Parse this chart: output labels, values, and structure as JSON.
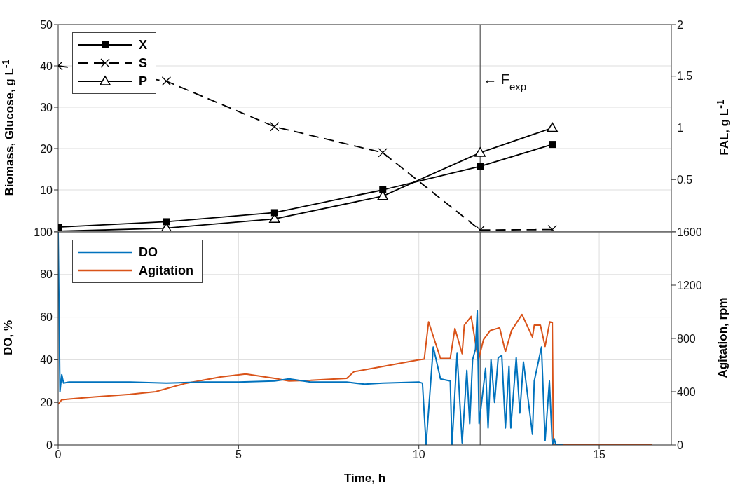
{
  "chart_data": [
    {
      "type": "line",
      "xlim": [
        0,
        17
      ],
      "xticks": [
        0,
        5,
        10,
        15
      ],
      "tick_labels": "y",
      "ylim": [
        0,
        50
      ],
      "yticks": [
        {
          "value": 0,
          "label": null
        },
        10,
        20,
        30,
        40,
        50
      ],
      "y2lim": [
        0,
        2
      ],
      "y2ticks": [
        {
          "value": 0,
          "label": null
        },
        0.5,
        1,
        1.5,
        2
      ],
      "ylabel": "Biomass, Glucose,  g L$^{-1}$",
      "y2label": "FAL,  g L$^{-1}$",
      "grid": true,
      "legend": "top left",
      "ref_lines": [
        {
          "axis": "x",
          "value": 11.7,
          "label": "← F$_{exp}$"
        }
      ],
      "series": [
        {
          "name": "X",
          "color": "#000000",
          "marker": "square",
          "line_style": "solid",
          "x": [
            0,
            3,
            6,
            9,
            11.7,
            13.7
          ],
          "values": [
            1,
            2.3,
            4.5,
            10,
            15.7,
            21
          ]
        },
        {
          "name": "S",
          "color": "#000000",
          "marker": "cross",
          "line_style": "dashed",
          "x": [
            0,
            3,
            6,
            9,
            11.7,
            13.7
          ],
          "values": [
            40,
            36.3,
            25.3,
            19,
            0.3,
            0.4
          ]
        },
        {
          "name": "P",
          "color": "#000000",
          "marker": "triangle",
          "line_style": "solid",
          "axis": "y2",
          "x": [
            0,
            3,
            6,
            9,
            11.7,
            13.7
          ],
          "values": [
            0,
            0.03,
            0.12,
            0.34,
            0.76,
            1.0
          ]
        }
      ]
    },
    {
      "type": "line",
      "xlim": [
        0,
        17
      ],
      "xticks": [
        0,
        5,
        10,
        15
      ],
      "ylim": [
        0,
        100
      ],
      "yticks": [
        0,
        20,
        40,
        60,
        80,
        100
      ],
      "y2lim": [
        0,
        1600
      ],
      "y2ticks": [
        0,
        400,
        800,
        1200,
        1600
      ],
      "xlabel": "Time,  h",
      "ylabel": "DO,  %",
      "y2label": "Agitation,  rpm",
      "grid": true,
      "legend": "top left",
      "marker": "none",
      "ref_lines": [
        {
          "axis": "x",
          "value": 11.7
        }
      ],
      "series": [
        {
          "name": "DO",
          "color": "#0072bd",
          "x": [
            0,
            0.05,
            0.1,
            0.15,
            0.3,
            1,
            2,
            3,
            4,
            5,
            6,
            6.4,
            7,
            8,
            8.5,
            9,
            10,
            10.1,
            10.2,
            10.4,
            10.6,
            10.87,
            10.92,
            11.06,
            11.2,
            11.33,
            11.41,
            11.49,
            11.57,
            11.62,
            11.67,
            11.85,
            11.92,
            12.0,
            12.1,
            12.2,
            12.3,
            12.4,
            12.5,
            12.55,
            12.7,
            12.8,
            12.9,
            13.15,
            13.2,
            13.4,
            13.5,
            13.62,
            13.7,
            13.75,
            13.8,
            14
          ],
          "values": [
            100,
            25,
            33,
            29,
            29.5,
            29.5,
            29.5,
            29,
            29.5,
            29.5,
            30,
            31,
            29.5,
            29.5,
            28.5,
            29,
            29.5,
            29,
            0,
            46,
            31,
            30,
            0,
            43,
            1,
            35,
            10,
            40,
            45,
            63,
            10,
            36,
            8,
            40,
            20,
            41,
            42,
            8,
            37,
            8,
            41,
            15,
            39,
            5,
            30,
            46,
            2,
            30,
            0,
            3,
            0,
            0
          ]
        },
        {
          "name": "Agitation",
          "color": "#d95319",
          "axis": "y2",
          "x": [
            0,
            0.1,
            0.3,
            1,
            2,
            2.7,
            3.5,
            4.5,
            5.2,
            6,
            6.4,
            7,
            8,
            8.2,
            9,
            10,
            10.15,
            10.27,
            10.6,
            10.87,
            11.0,
            11.2,
            11.26,
            11.45,
            11.65,
            11.79,
            11.98,
            12.24,
            12.4,
            12.57,
            12.86,
            13.15,
            13.2,
            13.37,
            13.5,
            13.63,
            13.7,
            13.73,
            14,
            16.47
          ],
          "values": [
            306,
            340,
            345,
            360,
            380,
            400,
            460,
            510,
            533,
            500,
            480,
            485,
            500,
            550,
            590,
            640,
            645,
            925,
            650,
            650,
            875,
            685,
            900,
            965,
            635,
            790,
            860,
            880,
            700,
            860,
            980,
            810,
            900,
            900,
            740,
            925,
            920,
            0,
            0,
            0
          ]
        }
      ]
    }
  ]
}
